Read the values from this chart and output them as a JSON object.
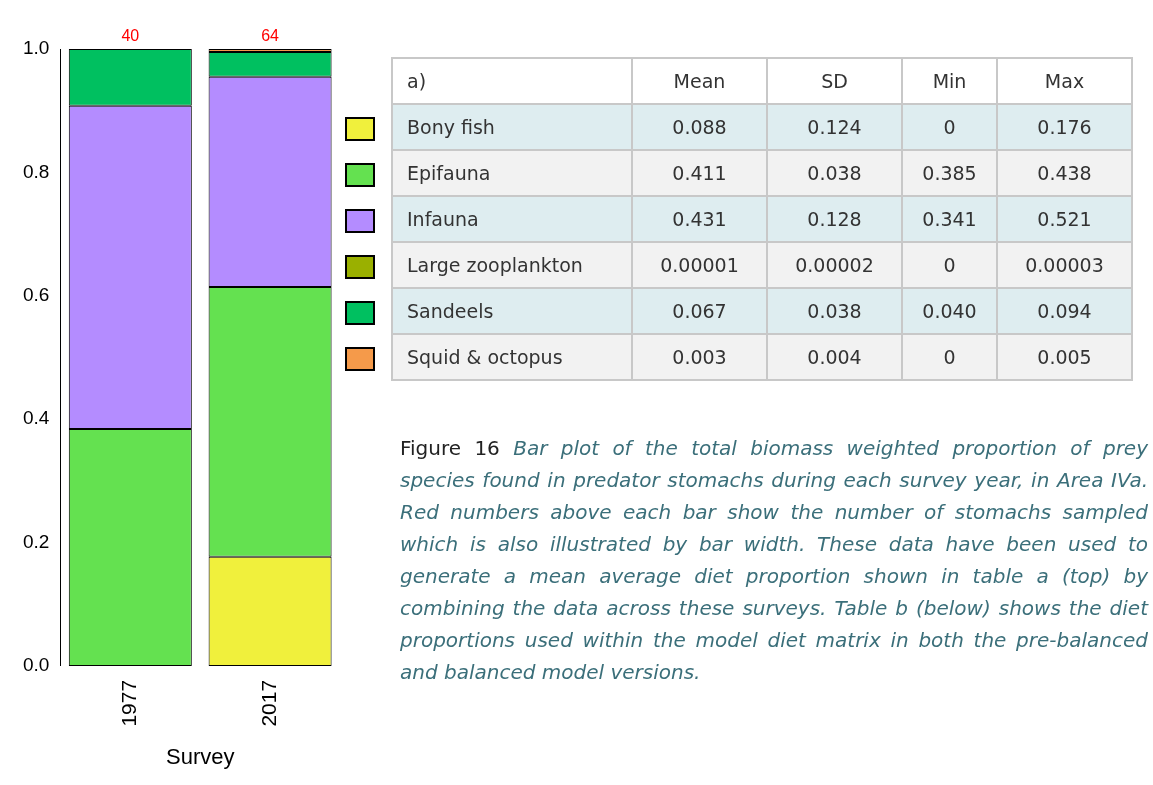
{
  "chart_data": {
    "type": "bar",
    "stacked": true,
    "xlabel": "Survey",
    "categories": [
      "1977",
      "2017"
    ],
    "series": [
      {
        "name": "Bony fish",
        "color": "#f0f03c",
        "values": [
          0,
          0.177
        ]
      },
      {
        "name": "Epifauna",
        "color": "#64e150",
        "values": [
          0.384,
          0.437
        ]
      },
      {
        "name": "Infauna",
        "color": "#b48cff",
        "values": [
          0.524,
          0.341
        ]
      },
      {
        "name": "Large zooplankton",
        "color": "#9ab000",
        "values": [
          0,
          0
        ]
      },
      {
        "name": "Sandeels",
        "color": "#00c060",
        "values": [
          0.092,
          0.04
        ]
      },
      {
        "name": "Squid & octopus",
        "color": "#f59a4a",
        "values": [
          0,
          0.005
        ]
      }
    ],
    "ylim": [
      0,
      1.0
    ],
    "yticks": [
      {
        "value": 0,
        "label": "0.0"
      },
      {
        "value": 0.2,
        "label": "0.2"
      },
      {
        "value": 0.4,
        "label": "0.4"
      },
      {
        "value": 0.6,
        "label": "0.6"
      },
      {
        "value": 0.8,
        "label": "0.8"
      },
      {
        "value": 1.0,
        "label": "1.0"
      }
    ],
    "grid": false,
    "legend": "right",
    "annotations": [
      {
        "text": "40",
        "x": "1977",
        "y": 1.0
      },
      {
        "text": "64",
        "x": "2017",
        "y": 1.0
      },
      "a)",
      "Mean",
      "SD",
      "Min",
      "Max",
      "0.088",
      "0.124",
      "0",
      "0.176",
      "0.411",
      "0.038",
      "0.385",
      "0.438",
      "0.431",
      "0.128",
      "0.341",
      "0.521",
      "0.00001",
      "0.00002",
      "0",
      "0.00003",
      "0.067",
      "0.038",
      "0.040",
      "0.094",
      "0.003",
      "0.004",
      "0",
      "0.005",
      "Figure 16",
      "Bar plot of the total biomass weighted proportion of prey species found in predator stomachs during each survey year, in Area IVa. Red numbers above each bar show the number of stomachs sampled which is also illustrated by bar width. These data have been used to generate a mean average diet proportion shown in table a (top) by combining the data across these surveys. Table b (below) shows the diet proportions used within the model diet matrix in both the pre-balanced and balanced model versions."
    ]
  }
}
